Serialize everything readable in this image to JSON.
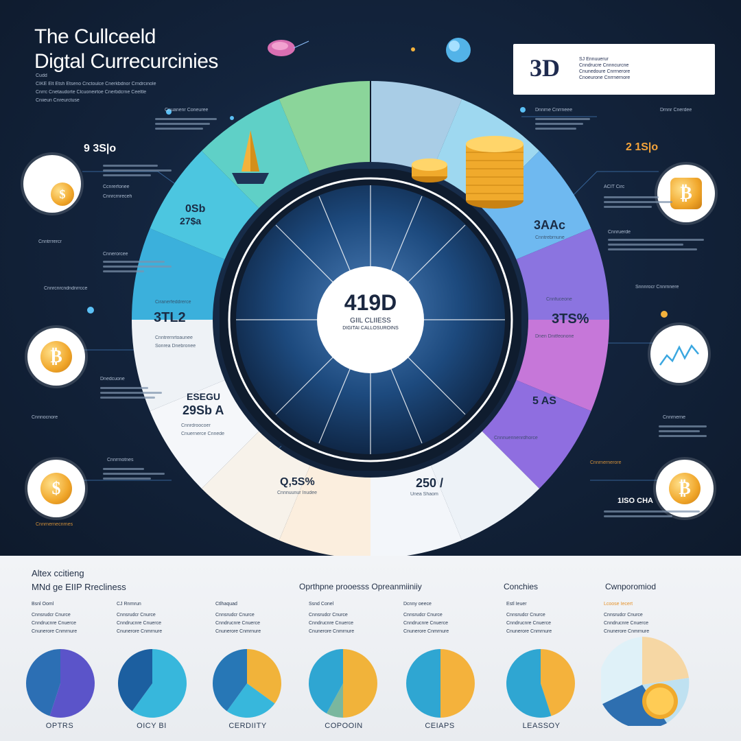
{
  "title": {
    "line1": "The Cullceeld",
    "line2": "Digtal Currecurcinies"
  },
  "intro": {
    "heading": "Cudd",
    "lines": [
      "CIKE Elt Etsh Etseno Cnctoulce Cnerkbdnor Crndrcinole",
      "Cnrrc Cnetaudorte Clcuoneirtoe Cnerbdcrne Ceeltle",
      "Cniieun Cnreurctuse"
    ]
  },
  "header_card": {
    "logo": "3D",
    "lines": [
      "SJ Ennuuerur",
      "Cnndrucre Cnnncurcne",
      "Cnunedoure Cnrrnerore",
      "Cnoeurone Cnrrnernore"
    ]
  },
  "center": {
    "value": "419D",
    "line1": "GIIL CLIIESS",
    "line2": "DIGITAI CALLOSUROINS"
  },
  "ring_stats": [
    {
      "id": "left-top",
      "value": "0Sb",
      "sub": "27$a"
    },
    {
      "id": "left-mid",
      "value": "3TL2"
    },
    {
      "id": "left-low-label",
      "value": "ESEGU"
    },
    {
      "id": "left-low",
      "value": "29Sb A"
    },
    {
      "id": "bottom-left",
      "value": "Q,5S%"
    },
    {
      "id": "bottom-right",
      "value": "250 /"
    },
    {
      "id": "right-top",
      "value": "3AAc"
    },
    {
      "id": "right-mid",
      "value": "3TS%"
    },
    {
      "id": "right-low",
      "value": "5 AS"
    }
  ],
  "side_stats": [
    {
      "id": "far-left-top",
      "value": "9 3S|o"
    },
    {
      "id": "far-right-top",
      "value": "2 1S|o"
    },
    {
      "id": "far-right-low",
      "value": "1ISO CHA"
    }
  ],
  "side_icons": [
    {
      "name": "globe-coin-icon",
      "symbol": "$"
    },
    {
      "name": "bitcoin-icon-left",
      "symbol": "₿"
    },
    {
      "name": "dollar-coin-icon",
      "symbol": "$"
    },
    {
      "name": "bitcoin-card-icon",
      "symbol": "₿"
    },
    {
      "name": "chart-icon",
      "symbol": ""
    },
    {
      "name": "bitcoin-icon-right",
      "symbol": "₿"
    }
  ],
  "bottom": {
    "head_left_1": "Altex ccitieng",
    "head_left_2": "MNd ge EIIP Rrecliness",
    "head_mid": "Oprthpne prooesss Opreanmiiniiy",
    "head_right_1": "Conchies",
    "head_right_2": "Cwnporomiod",
    "columns": [
      {
        "label": "OPTRS",
        "head": "Bsnl Ooml",
        "lines": [
          "Cnnsrudcr Cnurce",
          "Cnndrucnre Cnuerce",
          "Cnunerore Cnmrnure"
        ]
      },
      {
        "label": "OICY BI",
        "head": "CJ Rnrnrun",
        "lines": [
          "Cnnsrudcr Cnurce",
          "Cnndrucnre Cnuerce",
          "Cnunerore Cnmrnure"
        ]
      },
      {
        "label": "CERDIITY",
        "head": "Ctlhaquad",
        "lines": [
          "Cnnsrudcr Cnurce",
          "Cnndrucnre Cnuerce",
          "Cnunerore Cnmrnure"
        ]
      },
      {
        "label": "COPOOIN",
        "head": "Ssnd Conel",
        "lines": [
          "Cnnsrudcr Cnurce",
          "Cnndrucnre Cnuerce",
          "Cnunerore Cnmrnure"
        ]
      },
      {
        "label": "CEIAPS",
        "head": "Dcnny oeece",
        "lines": [
          "Cnnsrudcr Cnurce",
          "Cnndrucnre Cnuerce",
          "Cnunerore Cnmrnure"
        ]
      },
      {
        "label": "LEASSOY",
        "head": "Estl Ieuer",
        "lines": [
          "Cnnsrudcr Cnurce",
          "Cnndrucnre Cnuerce",
          "Cnunerore Cnmrnure"
        ]
      },
      {
        "label": "",
        "head": "Lcoose Iecert",
        "lines": [
          "Cnnsrudcr Cnurce",
          "Cnndrucnre Cnuerce",
          "Cnunerore Cnmrnure"
        ]
      }
    ],
    "pies": [
      {
        "name": "pie-1",
        "fractions": [
          0.55,
          0.45
        ],
        "colors": [
          "#5b54c9",
          "#2c6fb4"
        ]
      },
      {
        "name": "pie-2",
        "fractions": [
          0.6,
          0.4
        ],
        "colors": [
          "#37b7dc",
          "#1c5fa0"
        ]
      },
      {
        "name": "pie-3",
        "fractions": [
          0.35,
          0.25,
          0.4
        ],
        "colors": [
          "#f1b33a",
          "#37b7dc",
          "#2777b6"
        ]
      },
      {
        "name": "pie-4",
        "fractions": [
          0.5,
          0.08,
          0.42
        ],
        "colors": [
          "#f1b33a",
          "#7ab79e",
          "#2fa6d2"
        ]
      },
      {
        "name": "pie-5",
        "fractions": [
          0.5,
          0.5
        ],
        "colors": [
          "#f4b23c",
          "#2fa6d2"
        ]
      },
      {
        "name": "pie-6",
        "fractions": [
          0.45,
          0.55
        ],
        "colors": [
          "#f4b23c",
          "#2fa6d2"
        ]
      }
    ]
  },
  "ring_segments": {
    "colors": [
      "#3bb0dc",
      "#4cc6e0",
      "#5fd0c7",
      "#8bd59a",
      "#a9cde6",
      "#9ed8f0",
      "#6fb9f0",
      "#8b74e0",
      "#c677d9",
      "#8f6ee0",
      "#edf2f7",
      "#f3f6fa",
      "#fbeede",
      "#f7f2ea",
      "#f5f7fa",
      "#eef2f6"
    ]
  }
}
